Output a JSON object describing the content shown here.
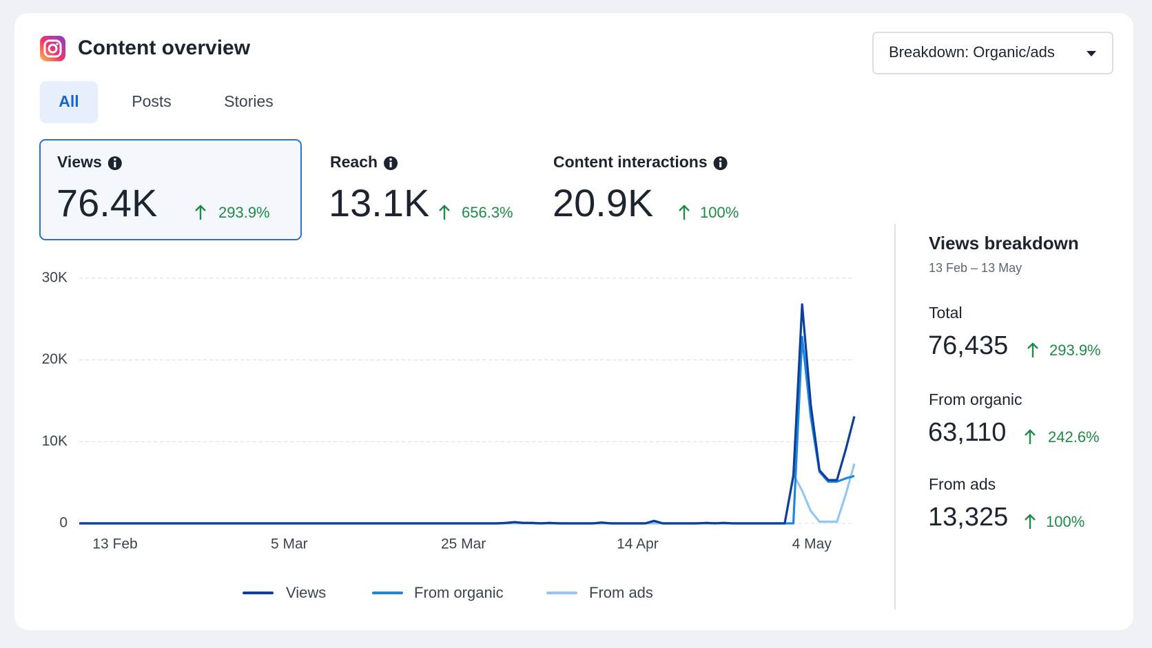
{
  "header": {
    "title": "Content overview",
    "dropdown": "Breakdown: Organic/ads"
  },
  "tabs": [
    "All",
    "Posts",
    "Stories"
  ],
  "metrics": [
    {
      "label": "Views",
      "value": "76.4K",
      "change": "293.9%"
    },
    {
      "label": "Reach",
      "value": "13.1K",
      "change": "656.3%"
    },
    {
      "label": "Content interactions",
      "value": "20.9K",
      "change": "100%"
    }
  ],
  "chart_data": {
    "type": "line",
    "categories": [
      "13 Feb",
      null,
      null,
      null,
      null,
      null,
      null,
      null,
      null,
      null,
      null,
      null,
      null,
      null,
      null,
      null,
      null,
      null,
      null,
      null,
      "5 Mar",
      null,
      null,
      null,
      null,
      null,
      null,
      null,
      null,
      null,
      null,
      null,
      null,
      null,
      null,
      null,
      null,
      null,
      null,
      null,
      "25 Mar",
      null,
      null,
      null,
      null,
      null,
      null,
      null,
      null,
      null,
      null,
      null,
      null,
      null,
      null,
      null,
      null,
      null,
      null,
      null,
      "14 Apr",
      null,
      null,
      null,
      null,
      null,
      null,
      null,
      null,
      null,
      null,
      null,
      null,
      null,
      null,
      null,
      null,
      null,
      null,
      null,
      "4 May",
      null,
      null,
      null,
      null,
      null,
      null,
      null,
      null,
      null
    ],
    "series": [
      {
        "name": "Views",
        "color": "#0d3f99",
        "values": [
          0,
          0,
          0,
          0,
          0,
          0,
          0,
          0,
          0,
          0,
          0,
          0,
          0,
          0,
          0,
          0,
          0,
          0,
          0,
          0,
          0,
          0,
          0,
          0,
          0,
          0,
          0,
          0,
          0,
          0,
          0,
          0,
          0,
          0,
          0,
          0,
          0,
          0,
          0,
          0,
          0,
          0,
          0,
          0,
          0,
          0,
          0,
          0,
          0,
          50,
          150,
          50,
          50,
          0,
          50,
          0,
          0,
          0,
          0,
          0,
          100,
          0,
          0,
          0,
          0,
          0,
          300,
          0,
          0,
          0,
          0,
          0,
          50,
          0,
          50,
          0,
          0,
          0,
          0,
          0,
          0,
          0,
          5800,
          26800,
          14500,
          6500,
          5300,
          5300,
          9000,
          13100
        ]
      },
      {
        "name": "From organic",
        "color": "#1f86e0",
        "values": [
          0,
          0,
          0,
          0,
          0,
          0,
          0,
          0,
          0,
          0,
          0,
          0,
          0,
          0,
          0,
          0,
          0,
          0,
          0,
          0,
          0,
          0,
          0,
          0,
          0,
          0,
          0,
          0,
          0,
          0,
          0,
          0,
          0,
          0,
          0,
          0,
          0,
          0,
          0,
          0,
          0,
          0,
          0,
          0,
          0,
          0,
          0,
          0,
          0,
          50,
          150,
          50,
          50,
          0,
          50,
          0,
          0,
          0,
          0,
          0,
          100,
          0,
          0,
          0,
          0,
          0,
          300,
          0,
          0,
          0,
          0,
          0,
          50,
          0,
          50,
          0,
          0,
          0,
          0,
          0,
          0,
          0,
          0,
          22800,
          13000,
          6300,
          5100,
          5100,
          5500,
          5800
        ]
      },
      {
        "name": "From ads",
        "color": "#92c7f5",
        "values": [
          0,
          0,
          0,
          0,
          0,
          0,
          0,
          0,
          0,
          0,
          0,
          0,
          0,
          0,
          0,
          0,
          0,
          0,
          0,
          0,
          0,
          0,
          0,
          0,
          0,
          0,
          0,
          0,
          0,
          0,
          0,
          0,
          0,
          0,
          0,
          0,
          0,
          0,
          0,
          0,
          0,
          0,
          0,
          0,
          0,
          0,
          0,
          0,
          0,
          0,
          0,
          0,
          0,
          0,
          0,
          0,
          0,
          0,
          0,
          0,
          0,
          0,
          0,
          0,
          0,
          0,
          0,
          0,
          0,
          0,
          0,
          0,
          0,
          0,
          0,
          0,
          0,
          0,
          0,
          0,
          0,
          0,
          6000,
          4000,
          1500,
          200,
          200,
          200,
          3500,
          7300
        ]
      }
    ],
    "ylim": [
      0,
      30000
    ],
    "yticks": [
      0,
      {
        "value": 10000,
        "label": "10K"
      },
      {
        "value": 20000,
        "label": "20K"
      },
      {
        "value": 30000,
        "label": "30K"
      }
    ],
    "grid": true
  },
  "breakdown": {
    "title": "Views breakdown",
    "subtitle": "13 Feb – 13 May",
    "items": [
      {
        "label": "Total",
        "value": "76,435",
        "change": "293.9%"
      },
      {
        "label": "From organic",
        "value": "63,110",
        "change": "242.6%"
      },
      {
        "label": "From ads",
        "value": "13,325",
        "change": "100%"
      }
    ]
  }
}
